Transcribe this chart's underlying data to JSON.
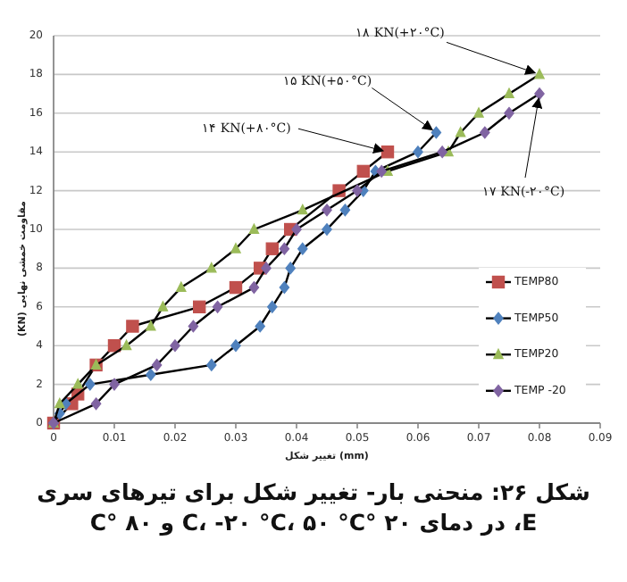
{
  "chart_data": {
    "type": "line",
    "title": "شکل ۲۶: منحنی بار- تغییر شکل برای تیرهای سری E، در دمای ۲۰ °C، -۲۰ °C، ۵۰ °C و ۸۰ °C",
    "xlabel": "تغییر شکل (mm)",
    "ylabel": "مقاومت خمشی نهایی (KN)",
    "xlim": [
      0,
      0.09
    ],
    "ylim": [
      0,
      20
    ],
    "xticks": [
      0,
      0.01,
      0.02,
      0.03,
      0.04,
      0.05,
      0.06,
      0.07,
      0.08,
      0.09
    ],
    "yticks": [
      0,
      2,
      4,
      6,
      8,
      10,
      12,
      14,
      16,
      18,
      20
    ],
    "grid": "y",
    "legend": "right",
    "series": [
      {
        "name": "TEMP80",
        "color": "#c0504d",
        "marker": "square",
        "x": [
          0,
          0.003,
          0.004,
          0.007,
          0.01,
          0.013,
          0.024,
          0.03,
          0.034,
          0.036,
          0.039,
          0.047,
          0.051,
          0.055
        ],
        "values": [
          0,
          1,
          1.5,
          3,
          4,
          5,
          6,
          7,
          8,
          9,
          10,
          12,
          13,
          14
        ]
      },
      {
        "name": "TEMP50",
        "color": "#4f81bd",
        "marker": "diamond",
        "x": [
          0,
          0.001,
          0.002,
          0.006,
          0.016,
          0.026,
          0.03,
          0.034,
          0.036,
          0.038,
          0.039,
          0.041,
          0.045,
          0.048,
          0.051,
          0.053,
          0.06,
          0.063
        ],
        "values": [
          0,
          0.5,
          1,
          2,
          2.5,
          3,
          4,
          5,
          6,
          7,
          8,
          9,
          10,
          11,
          12,
          13,
          14,
          15
        ]
      },
      {
        "name": "TEMP20",
        "color": "#9bbb59",
        "marker": "triangle",
        "x": [
          0,
          0.001,
          0.004,
          0.007,
          0.012,
          0.016,
          0.018,
          0.021,
          0.026,
          0.03,
          0.033,
          0.041,
          0.055,
          0.065,
          0.067,
          0.07,
          0.075,
          0.08
        ],
        "values": [
          0,
          1,
          2,
          3,
          4,
          5,
          6,
          7,
          8,
          9,
          10,
          11,
          13,
          14,
          15,
          16,
          17,
          18
        ]
      },
      {
        "name": "TEMP -20",
        "color": "#8064a2",
        "marker": "diamond",
        "x": [
          0,
          0.007,
          0.01,
          0.017,
          0.02,
          0.023,
          0.027,
          0.033,
          0.035,
          0.038,
          0.04,
          0.045,
          0.05,
          0.054,
          0.064,
          0.071,
          0.075,
          0.08
        ],
        "values": [
          0,
          1,
          2,
          3,
          4,
          5,
          6,
          7,
          8,
          9,
          10,
          11,
          12,
          13,
          14,
          15,
          16,
          17
        ]
      }
    ],
    "annotations": [
      {
        "text": "۱۸ KN(+۲۰°C)",
        "x": 0.08,
        "y": 18
      },
      {
        "text": "۱۵ KN(+۵۰°C)",
        "x": 0.063,
        "y": 15
      },
      {
        "text": "۱۴ KN(+۸۰°C)",
        "x": 0.055,
        "y": 14
      },
      {
        "text": "۱۷ KN(-۲۰°C)",
        "x": 0.08,
        "y": 17
      }
    ]
  }
}
